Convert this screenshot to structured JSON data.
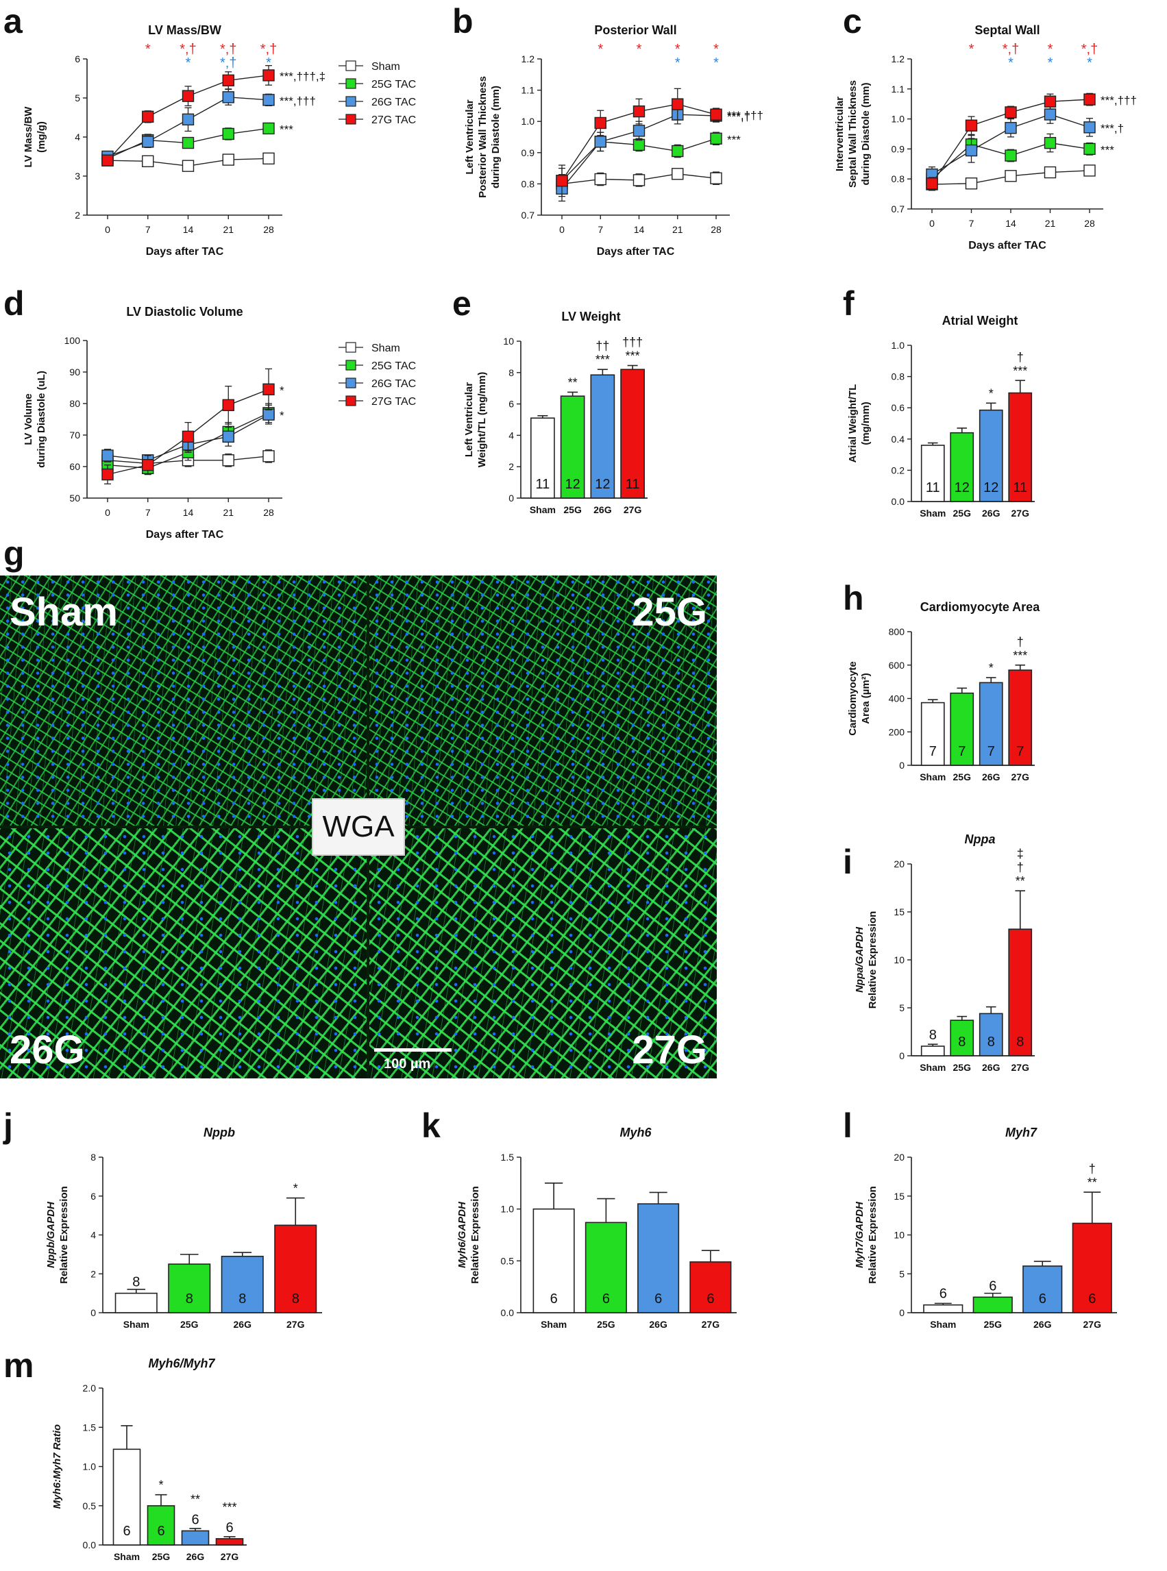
{
  "micrograph": {
    "panel": "g",
    "quadrants": [
      "Sham",
      "25G",
      "26G",
      "27G"
    ],
    "stain": "WGA",
    "scale_bar": "100 µm"
  },
  "colors": {
    "Sham": "#ffffff",
    "25G": "#22dd22",
    "26G": "#4f94e0",
    "27G": "#ee1111",
    "sig_red": "#ee2222",
    "sig_blue": "#2b86e6"
  },
  "chart_data": [
    {
      "panel": "a",
      "type": "line",
      "title": "LV Mass/BW",
      "xlabel": "Days after TAC",
      "ylabel": [
        "LV Mass/BW",
        "(mg/g)"
      ],
      "x": [
        0,
        7,
        14,
        21,
        28
      ],
      "xticks": [
        "0",
        "7",
        "14",
        "21",
        "28"
      ],
      "ylim": [
        2,
        6
      ],
      "yticks": [
        "2",
        "3",
        "4",
        "5",
        "6"
      ],
      "series": [
        {
          "name": "Sham",
          "values": [
            3.4,
            3.38,
            3.26,
            3.42,
            3.45
          ],
          "err": [
            0.1,
            0.08,
            0.08,
            0.08,
            0.08
          ],
          "end_label": ""
        },
        {
          "name": "25G TAC",
          "values": [
            3.45,
            3.92,
            3.85,
            4.08,
            4.22
          ],
          "err": [
            0.12,
            0.15,
            0.1,
            0.15,
            0.12
          ],
          "end_label": "***"
        },
        {
          "name": "26G TAC",
          "values": [
            3.5,
            3.88,
            4.45,
            5.02,
            4.95
          ],
          "err": [
            0.1,
            0.15,
            0.3,
            0.2,
            0.15
          ],
          "end_label": "***,†††"
        },
        {
          "name": "27G TAC",
          "values": [
            3.4,
            4.52,
            5.05,
            5.45,
            5.58
          ],
          "err": [
            0.12,
            0.15,
            0.25,
            0.22,
            0.25
          ],
          "end_label": "***,†††,‡"
        }
      ],
      "sig_red": [
        "",
        "*",
        "*,†",
        "*,†",
        "*,†"
      ],
      "sig_blue": [
        "",
        "",
        "*",
        "*,†",
        "*"
      ],
      "legend": [
        "Sham",
        "25G TAC",
        "26G TAC",
        "27G TAC"
      ]
    },
    {
      "panel": "b",
      "type": "line",
      "title": "Posterior Wall",
      "xlabel": "Days after TAC",
      "ylabel": [
        "Left Ventricular",
        "Posterior Wall Thickness",
        "during Diastole (mm)"
      ],
      "x": [
        0,
        7,
        14,
        21,
        28
      ],
      "xticks": [
        "0",
        "7",
        "14",
        "21",
        "28"
      ],
      "ylim": [
        0.7,
        1.2
      ],
      "yticks": [
        "0.7",
        "0.8",
        "0.9",
        "1.0",
        "1.1",
        "1.2"
      ],
      "series": [
        {
          "name": "Sham",
          "values": [
            0.8,
            0.815,
            0.812,
            0.832,
            0.818
          ],
          "err": [
            0.03,
            0.02,
            0.02,
            0.015,
            0.02
          ],
          "end_label": ""
        },
        {
          "name": "25G TAC",
          "values": [
            0.81,
            0.935,
            0.925,
            0.905,
            0.945
          ],
          "err": [
            0.04,
            0.03,
            0.02,
            0.02,
            0.02
          ],
          "end_label": "***"
        },
        {
          "name": "26G TAC",
          "values": [
            0.785,
            0.935,
            0.97,
            1.022,
            1.018
          ],
          "err": [
            0.04,
            0.03,
            0.03,
            0.03,
            0.02
          ],
          "end_label": "***,†"
        },
        {
          "name": "27G TAC",
          "values": [
            0.81,
            0.995,
            1.032,
            1.055,
            1.022
          ],
          "err": [
            0.05,
            0.04,
            0.04,
            0.05,
            0.02
          ],
          "end_label": "***,†††"
        }
      ],
      "sig_red": [
        "",
        "*",
        "*",
        "*",
        "*"
      ],
      "sig_blue": [
        "",
        "",
        "",
        "*",
        "*"
      ]
    },
    {
      "panel": "c",
      "type": "line",
      "title": "Septal Wall",
      "xlabel": "Days after TAC",
      "ylabel": [
        "Interventricular",
        "Septal Wall Thickness",
        "during Diastole (mm)"
      ],
      "x": [
        0,
        7,
        14,
        21,
        28
      ],
      "xticks": [
        "0",
        "7",
        "14",
        "21",
        "28"
      ],
      "ylim": [
        0.7,
        1.2
      ],
      "yticks": [
        "0.7",
        "0.8",
        "0.9",
        "1.0",
        "1.1",
        "1.2"
      ],
      "series": [
        {
          "name": "Sham",
          "values": [
            0.782,
            0.785,
            0.81,
            0.822,
            0.828
          ],
          "err": [
            0.02,
            0.015,
            0.015,
            0.015,
            0.015
          ],
          "end_label": ""
        },
        {
          "name": "25G TAC",
          "values": [
            0.8,
            0.915,
            0.878,
            0.92,
            0.9
          ],
          "err": [
            0.03,
            0.03,
            0.02,
            0.03,
            0.02
          ],
          "end_label": "***"
        },
        {
          "name": "26G TAC",
          "values": [
            0.815,
            0.895,
            0.97,
            1.015,
            0.972
          ],
          "err": [
            0.025,
            0.04,
            0.03,
            0.03,
            0.03
          ],
          "end_label": "***,†"
        },
        {
          "name": "27G TAC",
          "values": [
            0.785,
            0.978,
            1.022,
            1.058,
            1.065
          ],
          "err": [
            0.02,
            0.03,
            0.02,
            0.025,
            0.02
          ],
          "end_label": "***,†††"
        }
      ],
      "sig_red": [
        "",
        "*",
        "*,†",
        "*",
        "*,†"
      ],
      "sig_blue": [
        "",
        "",
        "*",
        "*",
        "*"
      ]
    },
    {
      "panel": "d",
      "type": "line",
      "title": "LV Diastolic Volume",
      "xlabel": "Days after TAC",
      "ylabel": [
        "LV Volume",
        "during Diastole (uL)"
      ],
      "x": [
        0,
        7,
        14,
        21,
        28
      ],
      "xticks": [
        "0",
        "7",
        "14",
        "21",
        "28"
      ],
      "ylim": [
        50,
        100
      ],
      "yticks": [
        "50",
        "60",
        "70",
        "80",
        "90",
        "100"
      ],
      "series": [
        {
          "name": "Sham",
          "values": [
            62,
            61,
            62,
            62,
            63.3
          ],
          "err": [
            2,
            1.5,
            2,
            2,
            2
          ],
          "end_label": ""
        },
        {
          "name": "25G TAC",
          "values": [
            60.5,
            59.5,
            64.5,
            71,
            77
          ],
          "err": [
            2,
            2,
            2.5,
            3,
            3
          ],
          "end_label": ""
        },
        {
          "name": "26G TAC",
          "values": [
            63.5,
            62,
            67,
            69.5,
            76.5
          ],
          "err": [
            2,
            1.5,
            2.5,
            3,
            3
          ],
          "end_label": "*"
        },
        {
          "name": "27G TAC",
          "values": [
            57.5,
            60.5,
            69.5,
            79.5,
            84.5
          ],
          "err": [
            3,
            3,
            4.5,
            6,
            6.5
          ],
          "end_label": "*"
        }
      ],
      "legend": [
        "Sham",
        "25G TAC",
        "26G TAC",
        "27G TAC"
      ]
    },
    {
      "panel": "e",
      "type": "bar",
      "title": "LV Weight",
      "ylabel": [
        "Left Ventricular",
        "Weight/TL (mg/mm)"
      ],
      "ylabel_italic": false,
      "categories": [
        "Sham",
        "25G",
        "26G",
        "27G"
      ],
      "values": [
        5.1,
        6.5,
        7.85,
        8.2
      ],
      "err": [
        0.15,
        0.25,
        0.35,
        0.25
      ],
      "n": [
        "11",
        "12",
        "12",
        "11"
      ],
      "sig": [
        [],
        [
          "**"
        ],
        [
          "††",
          "***"
        ],
        [
          "†††",
          "***"
        ]
      ],
      "ylim": [
        0,
        10
      ],
      "yticks": [
        "0",
        "2",
        "4",
        "6",
        "8",
        "10"
      ]
    },
    {
      "panel": "f",
      "type": "bar",
      "title": "Atrial Weight",
      "ylabel": [
        "Atrial Weight/TL",
        "(mg/mm)"
      ],
      "ylabel_italic": false,
      "categories": [
        "Sham",
        "25G",
        "26G",
        "27G"
      ],
      "values": [
        0.36,
        0.44,
        0.585,
        0.695
      ],
      "err": [
        0.015,
        0.03,
        0.045,
        0.08
      ],
      "n": [
        "11",
        "12",
        "12",
        "11"
      ],
      "sig": [
        [],
        [],
        [
          "*"
        ],
        [
          "†",
          "***"
        ]
      ],
      "ylim": [
        0,
        1.0
      ],
      "yticks": [
        "0.0",
        "0.2",
        "0.4",
        "0.6",
        "0.8",
        "1.0"
      ]
    },
    {
      "panel": "h",
      "type": "bar",
      "title": "Cardiomyocyte Area",
      "ylabel": [
        "Cardiomyocyte",
        "Area (µm²)"
      ],
      "ylabel_italic": false,
      "categories": [
        "Sham",
        "25G",
        "26G",
        "27G"
      ],
      "values": [
        375,
        432,
        495,
        570
      ],
      "err": [
        18,
        30,
        30,
        30
      ],
      "n": [
        "7",
        "7",
        "7",
        "7"
      ],
      "sig": [
        [],
        [],
        [
          "*"
        ],
        [
          "†",
          "***"
        ]
      ],
      "ylim": [
        0,
        800
      ],
      "yticks": [
        "0",
        "200",
        "400",
        "600",
        "800"
      ]
    },
    {
      "panel": "i",
      "type": "bar",
      "title": "Nppa",
      "title_italic": true,
      "ylabel": [
        "Nppa/GAPDH",
        "Relative Expression"
      ],
      "ylabel_italic": true,
      "categories": [
        "Sham",
        "25G",
        "26G",
        "27G"
      ],
      "values": [
        1.0,
        3.7,
        4.4,
        13.2
      ],
      "err": [
        0.2,
        0.4,
        0.7,
        4.0
      ],
      "n": [
        "8",
        "8",
        "8",
        "8"
      ],
      "sig": [
        [],
        [],
        [],
        [
          "‡",
          "†",
          "**"
        ]
      ],
      "ylim": [
        0,
        20
      ],
      "yticks": [
        "0",
        "5",
        "10",
        "15",
        "20"
      ]
    },
    {
      "panel": "j",
      "type": "bar",
      "title": "Nppb",
      "title_italic": true,
      "ylabel": [
        "Nppb/GAPDH",
        "Relative Expression"
      ],
      "ylabel_italic": true,
      "categories": [
        "Sham",
        "25G",
        "26G",
        "27G"
      ],
      "values": [
        1.0,
        2.5,
        2.9,
        4.5
      ],
      "err": [
        0.2,
        0.5,
        0.2,
        1.4
      ],
      "n": [
        "8",
        "8",
        "8",
        "8"
      ],
      "sig": [
        [],
        [],
        [],
        [
          "*"
        ]
      ],
      "ylim": [
        0,
        8
      ],
      "yticks": [
        "0",
        "2",
        "4",
        "6",
        "8"
      ]
    },
    {
      "panel": "k",
      "type": "bar",
      "title": "Myh6",
      "title_italic": true,
      "ylabel": [
        "Myh6/GAPDH",
        "Relative Expression"
      ],
      "ylabel_italic": true,
      "categories": [
        "Sham",
        "25G",
        "26G",
        "27G"
      ],
      "values": [
        1.0,
        0.87,
        1.05,
        0.49
      ],
      "err": [
        0.25,
        0.23,
        0.11,
        0.11
      ],
      "n": [
        "6",
        "6",
        "6",
        "6"
      ],
      "sig": [
        [],
        [],
        [],
        []
      ],
      "ylim": [
        0,
        1.5
      ],
      "yticks": [
        "0.0",
        "0.5",
        "1.0",
        "1.5"
      ]
    },
    {
      "panel": "l",
      "type": "bar",
      "title": "Myh7",
      "title_italic": true,
      "ylabel": [
        "Myh7/GAPDH",
        "Relative Expression"
      ],
      "ylabel_italic": true,
      "categories": [
        "Sham",
        "25G",
        "26G",
        "27G"
      ],
      "values": [
        1.0,
        2.0,
        6.0,
        11.5
      ],
      "err": [
        0.2,
        0.5,
        0.6,
        4.0
      ],
      "n": [
        "6",
        "6",
        "6",
        "6"
      ],
      "sig": [
        [],
        [],
        [],
        [
          "†",
          "**"
        ]
      ],
      "ylim": [
        0,
        20
      ],
      "yticks": [
        "0",
        "5",
        "10",
        "15",
        "20"
      ]
    },
    {
      "panel": "m",
      "type": "bar",
      "title": "Myh6/Myh7",
      "title_italic": true,
      "ylabel": [
        "Myh6:Myh7 Ratio"
      ],
      "ylabel_italic": true,
      "categories": [
        "Sham",
        "25G",
        "26G",
        "27G"
      ],
      "values": [
        1.22,
        0.5,
        0.18,
        0.08
      ],
      "err": [
        0.3,
        0.14,
        0.03,
        0.025
      ],
      "n": [
        "6",
        "6",
        "6",
        "6"
      ],
      "sig": [
        [],
        [
          "*"
        ],
        [
          "**"
        ],
        [
          "***"
        ]
      ],
      "ylim": [
        0,
        2.0
      ],
      "yticks": [
        "0.0",
        "0.5",
        "1.0",
        "1.5",
        "2.0"
      ]
    }
  ]
}
